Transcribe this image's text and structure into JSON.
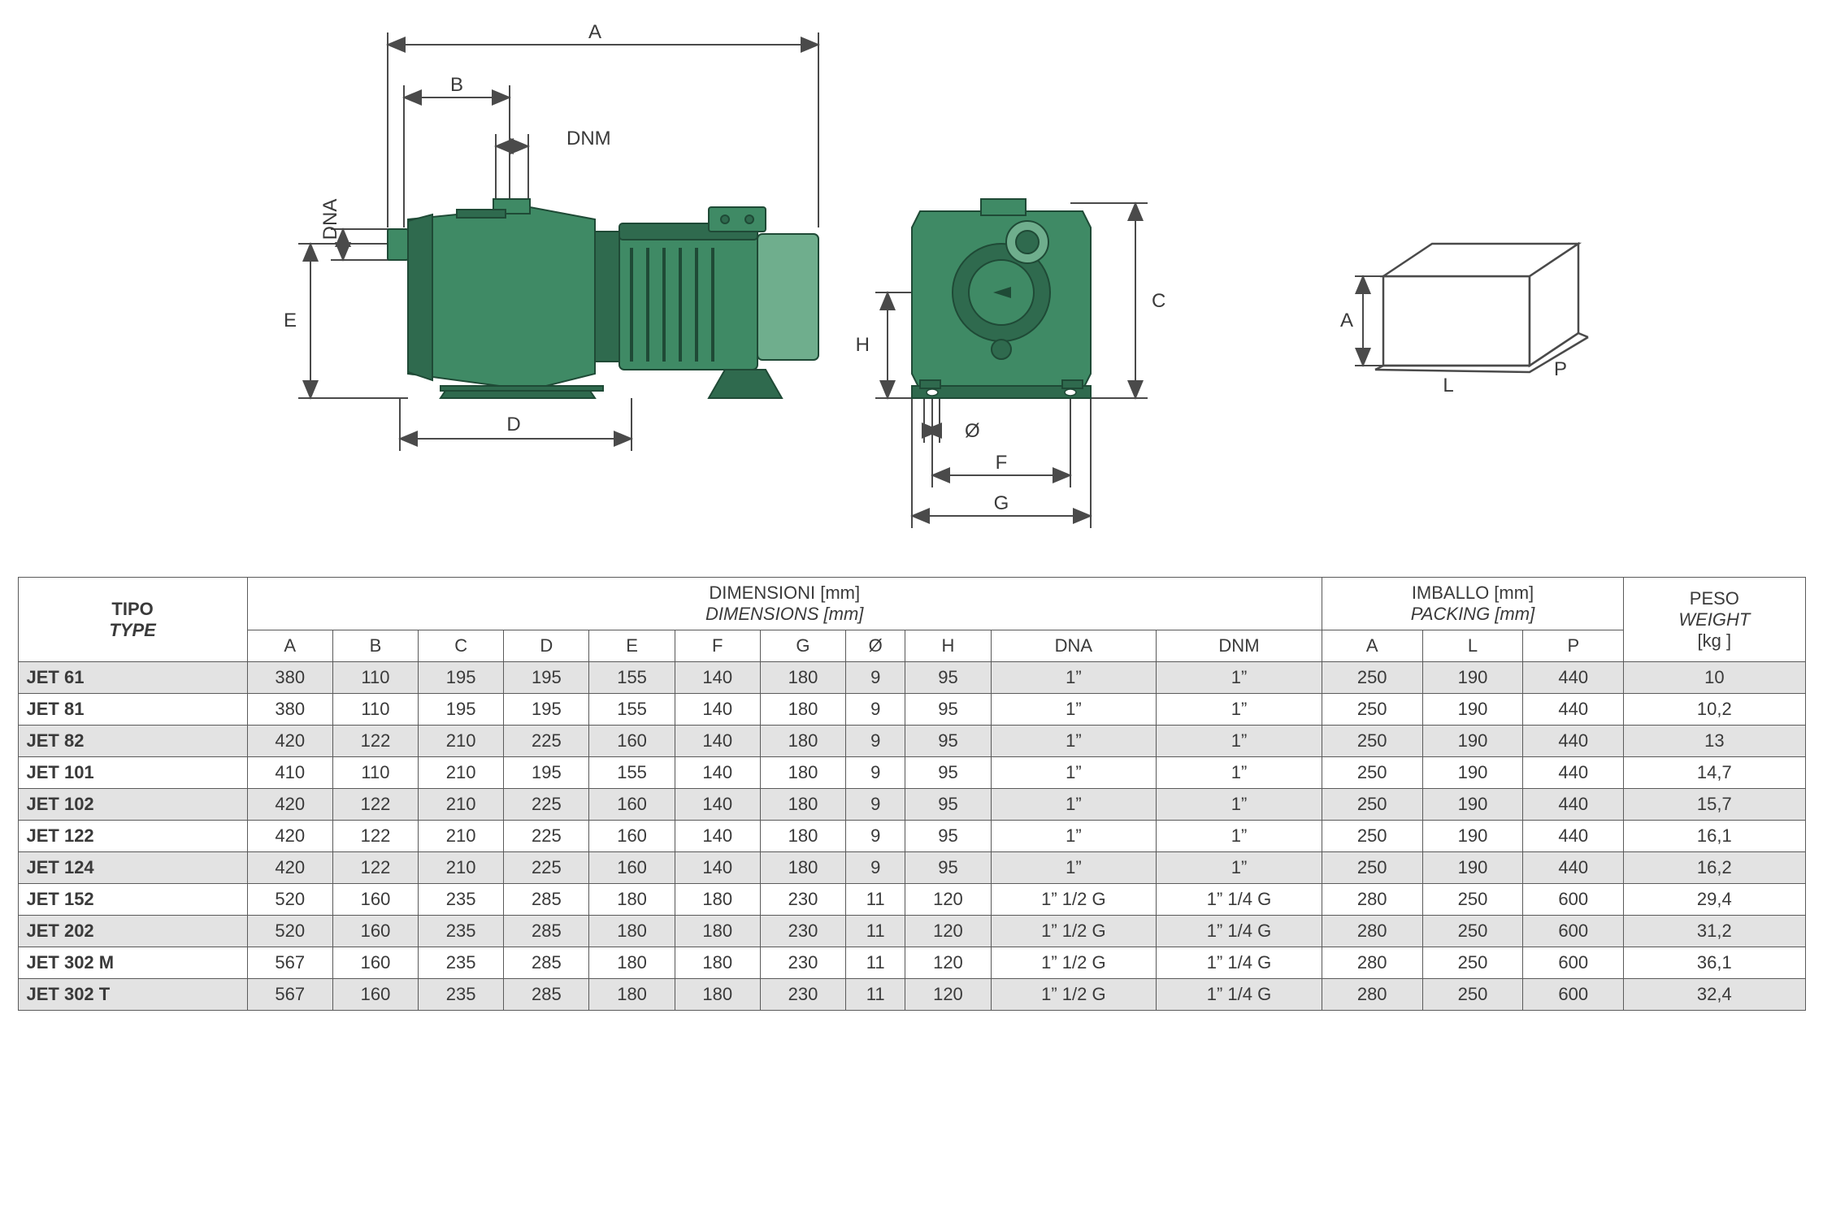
{
  "diagram": {
    "labels": {
      "A": "A",
      "B": "B",
      "C": "C",
      "D": "D",
      "E": "E",
      "F": "F",
      "G": "G",
      "H": "H",
      "phi": "Ø",
      "DNA": "DNA",
      "DNM": "DNM",
      "L": "L",
      "P": "P",
      "boxA": "A"
    },
    "colors": {
      "pump_body": "#3f8a65",
      "pump_dark": "#2f6a4e",
      "pump_light": "#6fae8d",
      "pump_stroke": "#1f4a36",
      "dim_line": "#4a4a4a",
      "text": "#3a3a3a",
      "background": "#ffffff"
    }
  },
  "table": {
    "headers": {
      "type": "TIPO",
      "type_sub": "TYPE",
      "dims": "DIMENSIONI [mm]",
      "dims_sub": "DIMENSIONS [mm]",
      "pack": "IMBALLO [mm]",
      "pack_sub": "PACKING [mm]",
      "weight": "PESO",
      "weight_sub": "WEIGHT",
      "weight_unit": "[kg ]"
    },
    "dim_cols": [
      "A",
      "B",
      "C",
      "D",
      "E",
      "F",
      "G",
      "Ø",
      "H",
      "DNA",
      "DNM"
    ],
    "pack_cols": [
      "A",
      "L",
      "P"
    ],
    "rows": [
      {
        "type": "JET 61",
        "vals": [
          "380",
          "110",
          "195",
          "195",
          "155",
          "140",
          "180",
          "9",
          "95",
          "1”",
          "1”",
          "250",
          "190",
          "440",
          "10"
        ]
      },
      {
        "type": "JET 81",
        "vals": [
          "380",
          "110",
          "195",
          "195",
          "155",
          "140",
          "180",
          "9",
          "95",
          "1”",
          "1”",
          "250",
          "190",
          "440",
          "10,2"
        ]
      },
      {
        "type": "JET 82",
        "vals": [
          "420",
          "122",
          "210",
          "225",
          "160",
          "140",
          "180",
          "9",
          "95",
          "1”",
          "1”",
          "250",
          "190",
          "440",
          "13"
        ]
      },
      {
        "type": "JET 101",
        "vals": [
          "410",
          "110",
          "210",
          "195",
          "155",
          "140",
          "180",
          "9",
          "95",
          "1”",
          "1”",
          "250",
          "190",
          "440",
          "14,7"
        ]
      },
      {
        "type": "JET 102",
        "vals": [
          "420",
          "122",
          "210",
          "225",
          "160",
          "140",
          "180",
          "9",
          "95",
          "1”",
          "1”",
          "250",
          "190",
          "440",
          "15,7"
        ]
      },
      {
        "type": "JET 122",
        "vals": [
          "420",
          "122",
          "210",
          "225",
          "160",
          "140",
          "180",
          "9",
          "95",
          "1”",
          "1”",
          "250",
          "190",
          "440",
          "16,1"
        ]
      },
      {
        "type": "JET 124",
        "vals": [
          "420",
          "122",
          "210",
          "225",
          "160",
          "140",
          "180",
          "9",
          "95",
          "1”",
          "1”",
          "250",
          "190",
          "440",
          "16,2"
        ]
      },
      {
        "type": "JET 152",
        "vals": [
          "520",
          "160",
          "235",
          "285",
          "180",
          "180",
          "230",
          "11",
          "120",
          "1” 1/2 G",
          "1” 1/4 G",
          "280",
          "250",
          "600",
          "29,4"
        ]
      },
      {
        "type": "JET 202",
        "vals": [
          "520",
          "160",
          "235",
          "285",
          "180",
          "180",
          "230",
          "11",
          "120",
          "1” 1/2 G",
          "1” 1/4 G",
          "280",
          "250",
          "600",
          "31,2"
        ]
      },
      {
        "type": "JET 302 M",
        "vals": [
          "567",
          "160",
          "235",
          "285",
          "180",
          "180",
          "230",
          "11",
          "120",
          "1” 1/2 G",
          "1” 1/4 G",
          "280",
          "250",
          "600",
          "36,1"
        ]
      },
      {
        "type": "JET 302 T",
        "vals": [
          "567",
          "160",
          "235",
          "285",
          "180",
          "180",
          "230",
          "11",
          "120",
          "1” 1/2 G",
          "1” 1/4 G",
          "280",
          "250",
          "600",
          "32,4"
        ]
      }
    ],
    "row_stripe_color": "#e3e3e3",
    "border_color": "#5a5a5a",
    "font_size": 22
  }
}
